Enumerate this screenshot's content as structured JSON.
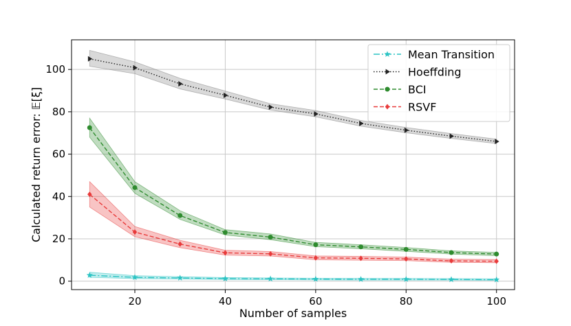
{
  "chart_data": {
    "type": "line",
    "title": "",
    "xlabel": "Number of samples",
    "ylabel": "Calculated return error: 𝔼[ξ]",
    "xlim": [
      6,
      104
    ],
    "ylim": [
      -4,
      114
    ],
    "xticks": [
      20,
      40,
      60,
      80,
      100
    ],
    "yticks": [
      0,
      20,
      40,
      60,
      80,
      100
    ],
    "grid": true,
    "legend_position": "top-right",
    "x": [
      10,
      20,
      30,
      40,
      50,
      60,
      70,
      80,
      90,
      100
    ],
    "series": [
      {
        "name": "Mean Transition",
        "color": "#2ac3c3",
        "linestyle": "dashdot",
        "marker": "star",
        "values": [
          2.8,
          1.8,
          1.5,
          1.2,
          1.1,
          1.0,
          0.9,
          0.9,
          0.8,
          0.7
        ],
        "lower": [
          1.8,
          1.2,
          1.0,
          0.8,
          0.7,
          0.6,
          0.5,
          0.5,
          0.5,
          0.4
        ],
        "upper": [
          4.2,
          2.6,
          2.1,
          1.7,
          1.5,
          1.4,
          1.3,
          1.3,
          1.2,
          1.1
        ]
      },
      {
        "name": "Hoeffding",
        "color": "#222222",
        "band_color": "#808080",
        "linestyle": "dotted",
        "marker": "triangle-right",
        "values": [
          105.0,
          100.8,
          93.2,
          87.8,
          82.2,
          79.0,
          74.5,
          71.3,
          68.5,
          66.0
        ],
        "lower": [
          101.5,
          98.0,
          90.8,
          86.0,
          80.8,
          77.6,
          73.2,
          70.1,
          67.4,
          65.0
        ],
        "upper": [
          109.0,
          103.6,
          95.8,
          89.8,
          83.8,
          80.6,
          75.9,
          72.6,
          69.7,
          67.1
        ]
      },
      {
        "name": "BCI",
        "color": "#2e8b2e",
        "linestyle": "dashed",
        "marker": "circle",
        "values": [
          72.5,
          44.2,
          31.0,
          23.0,
          20.8,
          17.2,
          16.2,
          15.0,
          13.5,
          12.8
        ],
        "lower": [
          68.0,
          41.5,
          29.2,
          21.8,
          19.6,
          16.3,
          15.3,
          14.1,
          12.8,
          12.0
        ],
        "upper": [
          77.0,
          47.0,
          33.3,
          24.3,
          22.3,
          18.3,
          17.2,
          15.9,
          14.3,
          13.6
        ]
      },
      {
        "name": "RSVF",
        "color": "#e83a3a",
        "linestyle": "dashed",
        "marker": "diamond",
        "values": [
          41.0,
          23.2,
          17.5,
          13.4,
          12.9,
          11.0,
          10.8,
          10.5,
          9.6,
          9.4
        ],
        "lower": [
          35.0,
          21.0,
          15.8,
          12.3,
          11.9,
          10.1,
          9.9,
          9.7,
          8.9,
          8.7
        ],
        "upper": [
          47.0,
          25.8,
          19.3,
          14.6,
          14.0,
          11.9,
          11.7,
          11.4,
          10.4,
          10.2
        ]
      }
    ]
  }
}
